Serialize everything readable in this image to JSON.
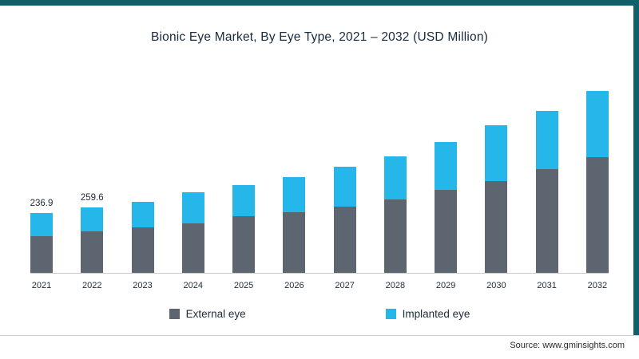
{
  "page": {
    "title": "Bionic Eye Market, By Eye Type, 2021 – 2032 (USD Million)",
    "source": "Source: www.gminsights.com"
  },
  "theme": {
    "accent_teal": "#0e616b",
    "external_color": "#5c6570",
    "implanted_color": "#25b6ea",
    "axis_line_color": "#c9c9c9",
    "title_color": "#16293e"
  },
  "legend": {
    "items": [
      {
        "label": "External eye",
        "color": "#5c6570"
      },
      {
        "label": "Implanted eye",
        "color": "#25b6ea"
      }
    ]
  },
  "chart_data": {
    "type": "bar",
    "stacked": true,
    "title": "Bionic Eye Market, By Eye Type, 2021 – 2032 (USD Million)",
    "unit": "USD Million",
    "categories": [
      "2021",
      "2022",
      "2023",
      "2024",
      "2025",
      "2026",
      "2027",
      "2028",
      "2029",
      "2030",
      "2031",
      "2032"
    ],
    "series": [
      {
        "name": "External eye",
        "color": "#5c6570",
        "values": [
          147.5,
          163.6,
          180,
          198,
          224,
          242,
          265,
          293,
          331,
          365,
          413,
          460
        ]
      },
      {
        "name": "Implanted eye",
        "color": "#25b6ea",
        "values": [
          89.4,
          96.0,
          104,
          123,
          126,
          139,
          157,
          170,
          189,
          221,
          233,
          264
        ]
      }
    ],
    "totals": [
      236.9,
      259.6,
      284,
      321,
      350,
      381,
      422,
      463,
      520,
      586,
      646,
      724
    ],
    "bar_labels": [
      "236.9",
      "259.6",
      "",
      "",
      "",
      "",
      "",
      "",
      "",
      "",
      "",
      ""
    ],
    "xlabel": "",
    "ylabel": "",
    "ylim": [
      0,
      760
    ],
    "grid": false,
    "legend_position": "bottom"
  }
}
